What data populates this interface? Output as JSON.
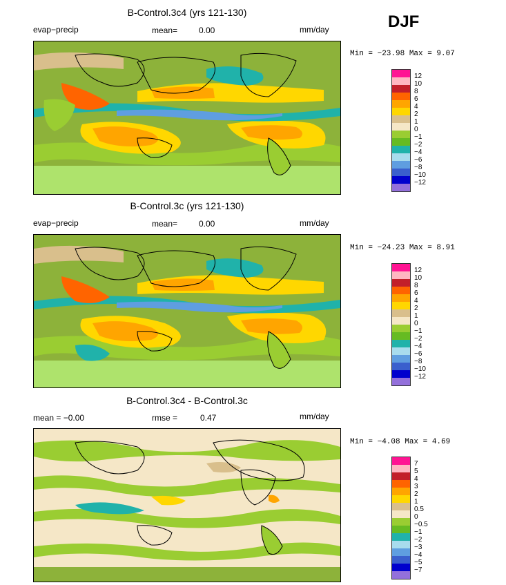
{
  "season": "DJF",
  "panels": [
    {
      "title": "B-Control.3c4 (yrs 121-130)",
      "left_label": "evap−precip",
      "stat_label": "mean=",
      "stat_value": "0.00",
      "units": "mm/day",
      "min_max": "Min = −23.98  Max =    9.07",
      "colorbar": {
        "labels": [
          "12",
          "10",
          "8",
          "6",
          "4",
          "2",
          "1",
          "0",
          "−1",
          "−2",
          "−4",
          "−6",
          "−8",
          "−10",
          "−12"
        ],
        "colors": [
          "#ff1493",
          "#ffb6c1",
          "#c21f2a",
          "#ff6400",
          "#ffa500",
          "#ffd700",
          "#d9bf8c",
          "#f5e7c7",
          "#9acd32",
          "#66bb22",
          "#20b2aa",
          "#a8dced",
          "#5f9ee0",
          "#3a5fcd",
          "#0000cd",
          "#9370db"
        ]
      }
    },
    {
      "title": "B-Control.3c (yrs 121-130)",
      "left_label": "evap−precip",
      "stat_label": "mean=",
      "stat_value": "0.00",
      "units": "mm/day",
      "min_max": "Min = −24.23  Max =    8.91",
      "colorbar": {
        "labels": [
          "12",
          "10",
          "8",
          "6",
          "4",
          "2",
          "1",
          "0",
          "−1",
          "−2",
          "−4",
          "−6",
          "−8",
          "−10",
          "−12"
        ],
        "colors": [
          "#ff1493",
          "#ffb6c1",
          "#c21f2a",
          "#ff6400",
          "#ffa500",
          "#ffd700",
          "#d9bf8c",
          "#f5e7c7",
          "#9acd32",
          "#66bb22",
          "#20b2aa",
          "#a8dced",
          "#5f9ee0",
          "#3a5fcd",
          "#0000cd",
          "#9370db"
        ]
      }
    },
    {
      "title": "B-Control.3c4 - B-Control.3c",
      "left_label": "mean =   −0.00",
      "stat_label": "rmse =",
      "stat_value": "0.47",
      "units": "mm/day",
      "min_max": "Min =  −4.08  Max =    4.69",
      "colorbar": {
        "labels": [
          "7",
          "5",
          "4",
          "3",
          "2",
          "1",
          "0.5",
          "0",
          "−0.5",
          "−1",
          "−2",
          "−3",
          "−4",
          "−5",
          "−7"
        ],
        "colors": [
          "#ff1493",
          "#ffb6c1",
          "#c21f2a",
          "#ff6400",
          "#ffa500",
          "#ffd700",
          "#d9bf8c",
          "#f5e7c7",
          "#9acd32",
          "#66bb22",
          "#20b2aa",
          "#a8dced",
          "#5f9ee0",
          "#3a5fcd",
          "#0000cd",
          "#9370db"
        ]
      }
    }
  ]
}
